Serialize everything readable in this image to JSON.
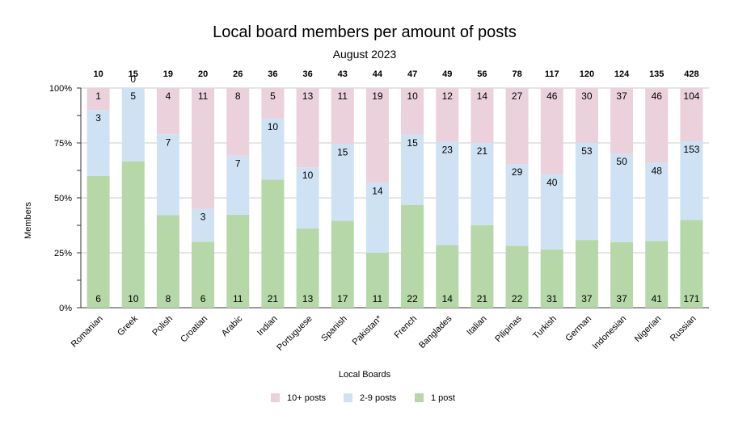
{
  "chart_data": {
    "type": "bar",
    "stacked": "percent",
    "title": "Local board members per amount of posts",
    "subtitle": "August 2023",
    "xlabel": "Local Boards",
    "ylabel": "Members",
    "ylim": [
      0,
      100
    ],
    "yticks": [
      "0%",
      "25%",
      "50%",
      "75%",
      "100%"
    ],
    "grid": true,
    "legend_position": "bottom",
    "categories": [
      "Romanian",
      "Greek",
      "Polish",
      "Croatian",
      "Arabic",
      "Indian",
      "Portuguese",
      "Spanish",
      "Pakistan*",
      "French",
      "Banglades",
      "Italian",
      "Pilipinas",
      "Turkish",
      "German",
      "Indonesian",
      "Nigerian",
      "Russian"
    ],
    "totals": [
      "10",
      "15",
      "19",
      "20",
      "26",
      "36",
      "36",
      "43",
      "44",
      "47",
      "49",
      "56",
      "78",
      "117",
      "120",
      "124",
      "135",
      "428"
    ],
    "series": [
      {
        "name": "1 post",
        "color": "#b6d7a8",
        "values": [
          6,
          10,
          8,
          6,
          11,
          21,
          13,
          17,
          11,
          22,
          14,
          21,
          22,
          31,
          37,
          37,
          41,
          171
        ]
      },
      {
        "name": "2-9 posts",
        "color": "#cfe2f3",
        "values": [
          3,
          5,
          7,
          3,
          7,
          10,
          10,
          15,
          14,
          15,
          23,
          21,
          29,
          40,
          53,
          50,
          48,
          153
        ]
      },
      {
        "name": "10+ posts",
        "color": "#ead1dc",
        "values": [
          1,
          0,
          4,
          11,
          8,
          5,
          13,
          11,
          19,
          10,
          12,
          14,
          27,
          46,
          30,
          37,
          46,
          104
        ]
      }
    ],
    "legend": [
      "10+ posts",
      "2-9 posts",
      "1 post"
    ]
  }
}
